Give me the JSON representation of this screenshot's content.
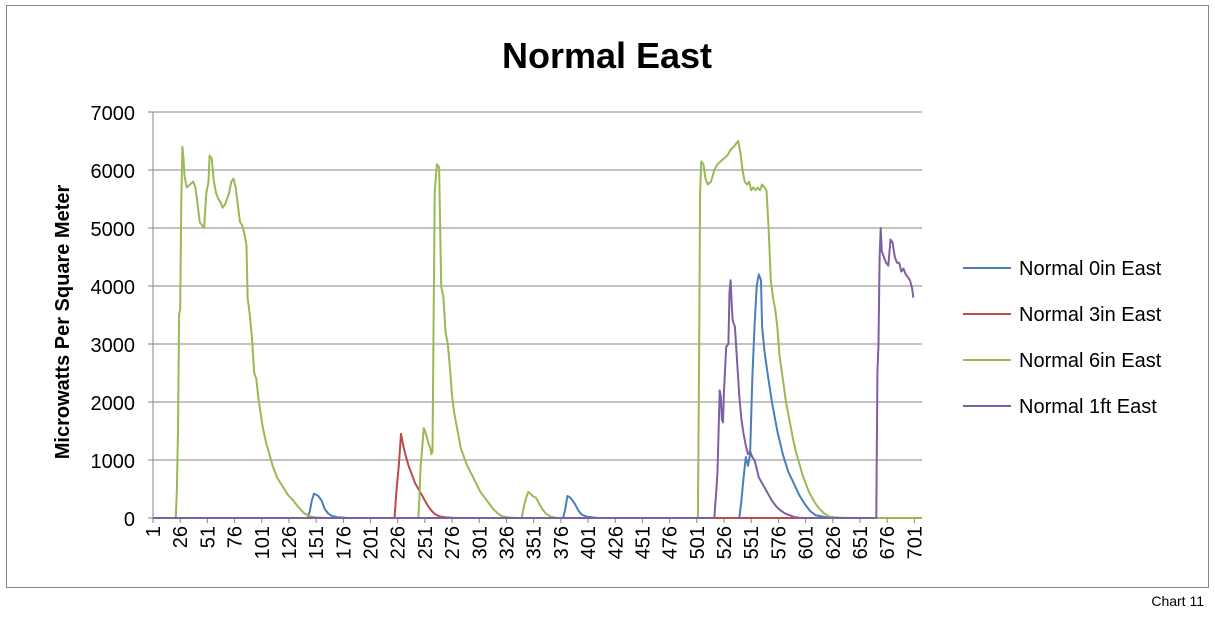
{
  "caption": "Chart 11",
  "chart_data": {
    "type": "line",
    "title": "Normal East",
    "ylabel": "Microwatts Per Square Meter",
    "xlabel": "",
    "ylim": [
      0,
      7000
    ],
    "yticks": [
      0,
      1000,
      2000,
      3000,
      4000,
      5000,
      6000,
      7000
    ],
    "xlim": [
      1,
      708
    ],
    "xticks": [
      1,
      26,
      51,
      76,
      101,
      126,
      151,
      176,
      201,
      226,
      251,
      276,
      301,
      326,
      351,
      376,
      401,
      426,
      451,
      476,
      501,
      526,
      551,
      576,
      601,
      626,
      651,
      676,
      701
    ],
    "grid": "horizontal",
    "legend": "right",
    "series": [
      {
        "name": "Normal 0in East",
        "color": "#4a7ebb",
        "points": [
          [
            1,
            0
          ],
          [
            143,
            0
          ],
          [
            145,
            100
          ],
          [
            147,
            300
          ],
          [
            149,
            420
          ],
          [
            151,
            400
          ],
          [
            153,
            380
          ],
          [
            156,
            300
          ],
          [
            159,
            150
          ],
          [
            162,
            80
          ],
          [
            165,
            40
          ],
          [
            170,
            15
          ],
          [
            180,
            0
          ],
          [
            378,
            0
          ],
          [
            380,
            150
          ],
          [
            382,
            380
          ],
          [
            384,
            360
          ],
          [
            386,
            320
          ],
          [
            389,
            240
          ],
          [
            392,
            130
          ],
          [
            395,
            60
          ],
          [
            400,
            20
          ],
          [
            410,
            0
          ],
          [
            540,
            0
          ],
          [
            542,
            300
          ],
          [
            544,
            700
          ],
          [
            546,
            1050
          ],
          [
            548,
            900
          ],
          [
            550,
            1100
          ],
          [
            552,
            2400
          ],
          [
            554,
            3300
          ],
          [
            556,
            4000
          ],
          [
            558,
            4200
          ],
          [
            560,
            4100
          ],
          [
            561,
            3300
          ],
          [
            563,
            2900
          ],
          [
            566,
            2500
          ],
          [
            570,
            2000
          ],
          [
            575,
            1500
          ],
          [
            580,
            1100
          ],
          [
            585,
            800
          ],
          [
            590,
            600
          ],
          [
            595,
            400
          ],
          [
            600,
            250
          ],
          [
            605,
            120
          ],
          [
            610,
            50
          ],
          [
            620,
            10
          ],
          [
            630,
            0
          ],
          [
            708,
            0
          ]
        ]
      },
      {
        "name": "Normal 3in East",
        "color": "#be4b48",
        "points": [
          [
            1,
            0
          ],
          [
            223,
            0
          ],
          [
            225,
            500
          ],
          [
            227,
            900
          ],
          [
            229,
            1450
          ],
          [
            231,
            1250
          ],
          [
            233,
            1100
          ],
          [
            236,
            900
          ],
          [
            239,
            750
          ],
          [
            242,
            600
          ],
          [
            245,
            500
          ],
          [
            248,
            400
          ],
          [
            251,
            300
          ],
          [
            254,
            200
          ],
          [
            257,
            130
          ],
          [
            260,
            70
          ],
          [
            264,
            30
          ],
          [
            270,
            10
          ],
          [
            280,
            0
          ],
          [
            708,
            0
          ]
        ]
      },
      {
        "name": "Normal 6in East",
        "color": "#98b954",
        "points": [
          [
            1,
            0
          ],
          [
            22,
            0
          ],
          [
            23,
            500
          ],
          [
            24,
            1500
          ],
          [
            25,
            3500
          ],
          [
            26,
            3600
          ],
          [
            27,
            5500
          ],
          [
            28,
            6400
          ],
          [
            29,
            6200
          ],
          [
            30,
            5900
          ],
          [
            32,
            5700
          ],
          [
            35,
            5750
          ],
          [
            38,
            5800
          ],
          [
            40,
            5700
          ],
          [
            42,
            5400
          ],
          [
            44,
            5100
          ],
          [
            46,
            5050
          ],
          [
            48,
            5000
          ],
          [
            50,
            5600
          ],
          [
            52,
            5800
          ],
          [
            53,
            6250
          ],
          [
            55,
            6200
          ],
          [
            57,
            5800
          ],
          [
            59,
            5600
          ],
          [
            61,
            5500
          ],
          [
            63,
            5450
          ],
          [
            65,
            5350
          ],
          [
            67,
            5400
          ],
          [
            69,
            5500
          ],
          [
            71,
            5600
          ],
          [
            73,
            5800
          ],
          [
            75,
            5850
          ],
          [
            77,
            5700
          ],
          [
            79,
            5400
          ],
          [
            81,
            5100
          ],
          [
            83,
            5050
          ],
          [
            85,
            4900
          ],
          [
            87,
            4700
          ],
          [
            88,
            3800
          ],
          [
            90,
            3500
          ],
          [
            92,
            3100
          ],
          [
            94,
            2500
          ],
          [
            96,
            2400
          ],
          [
            98,
            2050
          ],
          [
            100,
            1800
          ],
          [
            102,
            1550
          ],
          [
            105,
            1300
          ],
          [
            108,
            1100
          ],
          [
            111,
            900
          ],
          [
            115,
            700
          ],
          [
            120,
            550
          ],
          [
            125,
            400
          ],
          [
            130,
            300
          ],
          [
            135,
            180
          ],
          [
            140,
            80
          ],
          [
            145,
            30
          ],
          [
            150,
            10
          ],
          [
            160,
            0
          ],
          [
            245,
            0
          ],
          [
            246,
            400
          ],
          [
            247,
            900
          ],
          [
            248,
            1100
          ],
          [
            250,
            1550
          ],
          [
            252,
            1450
          ],
          [
            254,
            1300
          ],
          [
            256,
            1200
          ],
          [
            257,
            1100
          ],
          [
            258,
            1150
          ],
          [
            260,
            5600
          ],
          [
            262,
            6100
          ],
          [
            264,
            6050
          ],
          [
            266,
            4000
          ],
          [
            268,
            3800
          ],
          [
            270,
            3200
          ],
          [
            272,
            3000
          ],
          [
            274,
            2600
          ],
          [
            276,
            2100
          ],
          [
            278,
            1800
          ],
          [
            281,
            1500
          ],
          [
            284,
            1200
          ],
          [
            287,
            1050
          ],
          [
            290,
            900
          ],
          [
            294,
            750
          ],
          [
            298,
            600
          ],
          [
            302,
            450
          ],
          [
            306,
            350
          ],
          [
            310,
            250
          ],
          [
            314,
            150
          ],
          [
            318,
            80
          ],
          [
            322,
            30
          ],
          [
            328,
            10
          ],
          [
            335,
            0
          ],
          [
            340,
            0
          ],
          [
            342,
            200
          ],
          [
            344,
            350
          ],
          [
            346,
            450
          ],
          [
            348,
            420
          ],
          [
            350,
            380
          ],
          [
            353,
            350
          ],
          [
            356,
            250
          ],
          [
            359,
            150
          ],
          [
            362,
            80
          ],
          [
            366,
            30
          ],
          [
            372,
            0
          ],
          [
            502,
            0
          ],
          [
            503,
            2500
          ],
          [
            504,
            5600
          ],
          [
            505,
            6150
          ],
          [
            507,
            6100
          ],
          [
            509,
            5850
          ],
          [
            511,
            5750
          ],
          [
            514,
            5800
          ],
          [
            517,
            6000
          ],
          [
            520,
            6100
          ],
          [
            523,
            6150
          ],
          [
            526,
            6200
          ],
          [
            529,
            6250
          ],
          [
            532,
            6350
          ],
          [
            535,
            6400
          ],
          [
            537,
            6450
          ],
          [
            539,
            6500
          ],
          [
            541,
            6300
          ],
          [
            543,
            6000
          ],
          [
            545,
            5800
          ],
          [
            547,
            5750
          ],
          [
            549,
            5800
          ],
          [
            551,
            5650
          ],
          [
            553,
            5700
          ],
          [
            555,
            5650
          ],
          [
            557,
            5700
          ],
          [
            559,
            5650
          ],
          [
            561,
            5750
          ],
          [
            563,
            5700
          ],
          [
            565,
            5650
          ],
          [
            567,
            5000
          ],
          [
            569,
            4100
          ],
          [
            571,
            3800
          ],
          [
            573,
            3600
          ],
          [
            575,
            3300
          ],
          [
            577,
            2800
          ],
          [
            580,
            2400
          ],
          [
            583,
            2000
          ],
          [
            586,
            1700
          ],
          [
            589,
            1400
          ],
          [
            592,
            1150
          ],
          [
            595,
            950
          ],
          [
            598,
            750
          ],
          [
            601,
            600
          ],
          [
            604,
            450
          ],
          [
            607,
            350
          ],
          [
            610,
            250
          ],
          [
            614,
            150
          ],
          [
            618,
            80
          ],
          [
            622,
            30
          ],
          [
            628,
            10
          ],
          [
            640,
            0
          ],
          [
            708,
            0
          ]
        ]
      },
      {
        "name": "Normal 1ft East",
        "color": "#7d60a0",
        "points": [
          [
            1,
            0
          ],
          [
            517,
            0
          ],
          [
            519,
            500
          ],
          [
            520,
            800
          ],
          [
            521,
            1500
          ],
          [
            522,
            2200
          ],
          [
            523,
            2100
          ],
          [
            524,
            1700
          ],
          [
            525,
            1650
          ],
          [
            526,
            2200
          ],
          [
            528,
            2950
          ],
          [
            530,
            3000
          ],
          [
            531,
            3900
          ],
          [
            532,
            4100
          ],
          [
            533,
            3700
          ],
          [
            534,
            3400
          ],
          [
            536,
            3300
          ],
          [
            538,
            2700
          ],
          [
            540,
            2100
          ],
          [
            542,
            1700
          ],
          [
            544,
            1450
          ],
          [
            546,
            1250
          ],
          [
            548,
            1100
          ],
          [
            550,
            1150
          ],
          [
            552,
            1050
          ],
          [
            554,
            1000
          ],
          [
            556,
            850
          ],
          [
            558,
            700
          ],
          [
            561,
            600
          ],
          [
            564,
            500
          ],
          [
            567,
            400
          ],
          [
            570,
            300
          ],
          [
            574,
            200
          ],
          [
            578,
            130
          ],
          [
            582,
            80
          ],
          [
            586,
            50
          ],
          [
            590,
            20
          ],
          [
            595,
            5
          ],
          [
            600,
            0
          ],
          [
            666,
            0
          ],
          [
            667,
            2500
          ],
          [
            668,
            3000
          ],
          [
            669,
            4500
          ],
          [
            670,
            5000
          ],
          [
            671,
            4600
          ],
          [
            673,
            4500
          ],
          [
            675,
            4400
          ],
          [
            677,
            4350
          ],
          [
            679,
            4800
          ],
          [
            681,
            4750
          ],
          [
            683,
            4500
          ],
          [
            685,
            4400
          ],
          [
            687,
            4400
          ],
          [
            689,
            4250
          ],
          [
            691,
            4300
          ],
          [
            693,
            4200
          ],
          [
            695,
            4150
          ],
          [
            697,
            4100
          ],
          [
            699,
            3950
          ],
          [
            700,
            3800
          ]
        ]
      }
    ]
  }
}
